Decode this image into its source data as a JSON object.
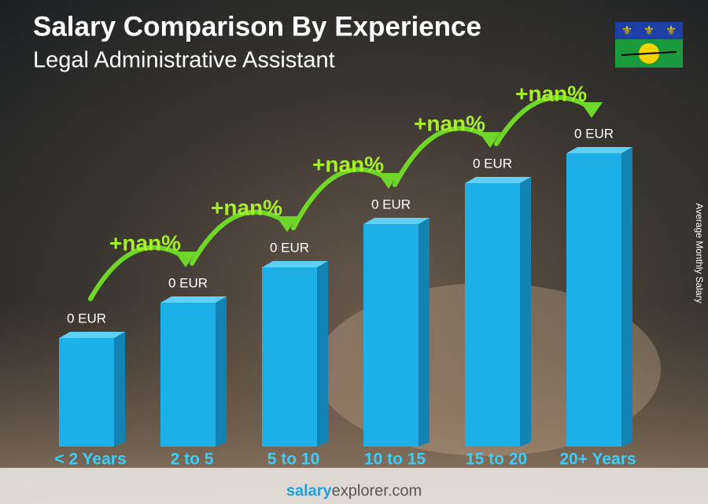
{
  "chart_data": {
    "type": "bar",
    "title": "Salary Comparison By Experience",
    "subtitle": "Legal Administrative Assistant",
    "y_label": "Average Monthly Salary",
    "categories": [
      "< 2 Years",
      "2 to 5",
      "5 to 10",
      "10 to 15",
      "15 to 20",
      "20+ Years"
    ],
    "values": [
      0,
      0,
      0,
      0,
      0,
      0
    ],
    "value_labels": [
      "0 EUR",
      "0 EUR",
      "0 EUR",
      "0 EUR",
      "0 EUR",
      "0 EUR"
    ],
    "change_labels": [
      "+nan%",
      "+nan%",
      "+nan%",
      "+nan%",
      "+nan%"
    ],
    "color": "#1cb0e6",
    "footer": {
      "brand": "salary",
      "rest": "explorer.com"
    }
  }
}
